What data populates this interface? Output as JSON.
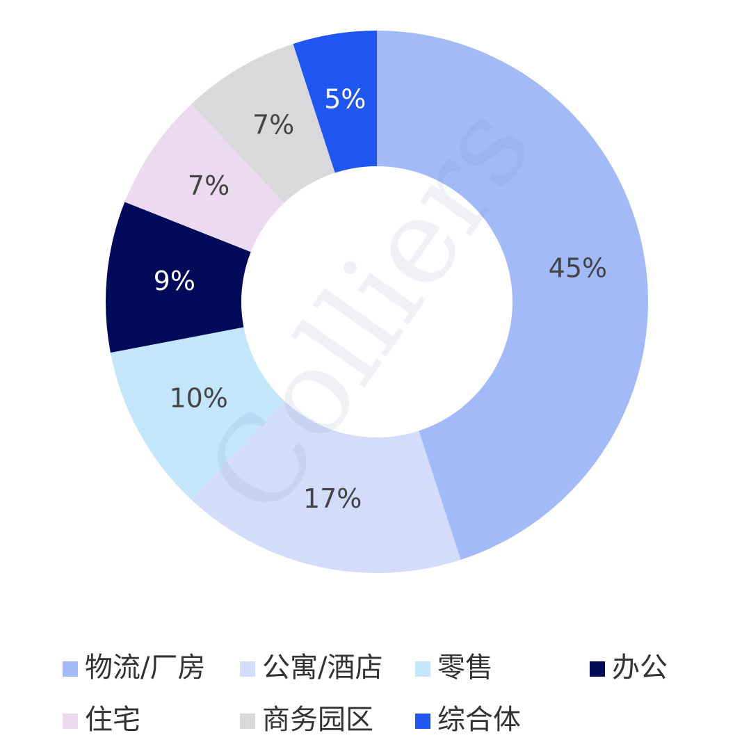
{
  "chart_data": {
    "type": "donut",
    "watermark": "Colliers",
    "categories": [
      "物流/厂房",
      "公寓/酒店",
      "零售",
      "办公",
      "住宅",
      "商务园区",
      "综合体"
    ],
    "values": [
      45,
      17,
      10,
      9,
      7,
      7,
      5
    ],
    "value_labels": [
      "45%",
      "17%",
      "10%",
      "9%",
      "7%",
      "7%",
      "5%"
    ],
    "colors": [
      "#a3baf8",
      "#d3ddfb",
      "#c3e6fc",
      "#020a5a",
      "#ecdaf0",
      "#d9d9db",
      "#1f55f0"
    ],
    "legend": "bottom"
  }
}
